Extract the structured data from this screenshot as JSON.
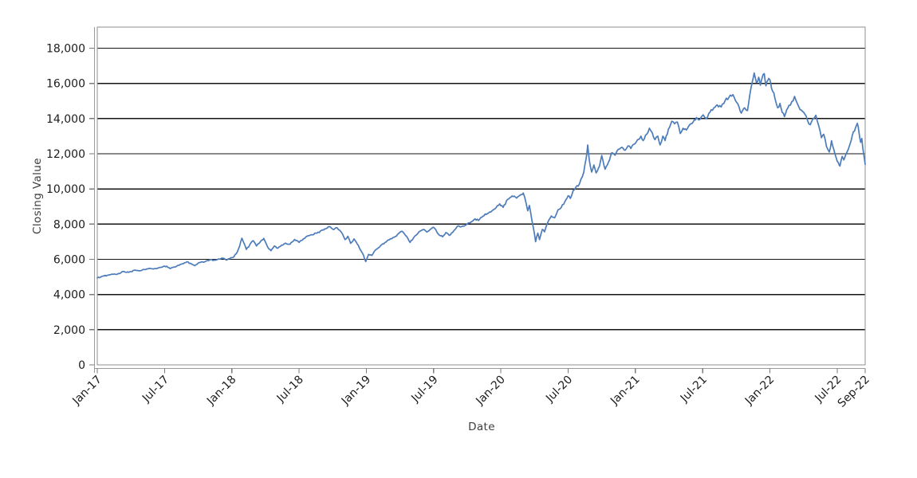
{
  "style": {
    "background": "#ffffff",
    "line_color": "#4d7cba",
    "grid_color": "#141414",
    "border_color": "#8f8f8f",
    "axis_color": "#9a9a9a",
    "tick_color": "#7a7a7a",
    "tick_label_color": "#1c1c1c",
    "axis_title_color": "#3d3d3d"
  },
  "chart_data": {
    "type": "line",
    "title": "",
    "xlabel": "Date",
    "ylabel": "Closing Value",
    "legend": "none",
    "grid": {
      "horizontal": true,
      "vertical": false
    },
    "x_axis": {
      "unit": "months since Jan-2017",
      "domain_months": [
        0,
        68.5
      ],
      "tick_months": [
        0,
        6,
        12,
        18,
        24,
        30,
        36,
        42,
        48,
        54,
        60,
        66,
        68.5
      ],
      "tick_labels": [
        "Jan-17",
        "Jul-17",
        "Jan-18",
        "Jul-18",
        "Jan-19",
        "Jul-19",
        "Jan-20",
        "Jul-20",
        "Jan-21",
        "Jul-21",
        "Jan-22",
        "Jul-22",
        "Sep-22"
      ],
      "label_rotation_deg": -45
    },
    "y_axis": {
      "min": 0,
      "max": 19200,
      "tick_values": [
        0,
        2000,
        4000,
        6000,
        8000,
        10000,
        12000,
        14000,
        16000,
        18000
      ],
      "tick_format": "thousands-comma"
    },
    "series": [
      {
        "name": "Closing Value",
        "color": "#4d7cba",
        "points_month_value": [
          [
            0.0,
            4950
          ],
          [
            0.3,
            4990
          ],
          [
            0.6,
            5060
          ],
          [
            1.0,
            5100
          ],
          [
            1.3,
            5160
          ],
          [
            1.7,
            5140
          ],
          [
            2.0,
            5190
          ],
          [
            2.3,
            5310
          ],
          [
            2.6,
            5260
          ],
          [
            3.0,
            5300
          ],
          [
            3.4,
            5390
          ],
          [
            3.8,
            5350
          ],
          [
            4.2,
            5420
          ],
          [
            4.6,
            5480
          ],
          [
            5.0,
            5450
          ],
          [
            5.4,
            5500
          ],
          [
            5.8,
            5560
          ],
          [
            6.2,
            5610
          ],
          [
            6.5,
            5470
          ],
          [
            6.9,
            5560
          ],
          [
            7.3,
            5660
          ],
          [
            7.7,
            5760
          ],
          [
            8.0,
            5860
          ],
          [
            8.4,
            5740
          ],
          [
            8.7,
            5640
          ],
          [
            9.0,
            5790
          ],
          [
            9.4,
            5850
          ],
          [
            9.7,
            5900
          ],
          [
            10.1,
            5990
          ],
          [
            10.4,
            5950
          ],
          [
            10.8,
            6020
          ],
          [
            11.2,
            6060
          ],
          [
            11.5,
            5960
          ],
          [
            11.8,
            6030
          ],
          [
            12.1,
            6100
          ],
          [
            12.4,
            6320
          ],
          [
            12.7,
            6750
          ],
          [
            12.9,
            7200
          ],
          [
            13.1,
            6900
          ],
          [
            13.3,
            6560
          ],
          [
            13.6,
            6820
          ],
          [
            13.9,
            7060
          ],
          [
            14.2,
            6760
          ],
          [
            14.55,
            7000
          ],
          [
            14.85,
            7190
          ],
          [
            15.2,
            6700
          ],
          [
            15.5,
            6490
          ],
          [
            15.8,
            6760
          ],
          [
            16.1,
            6630
          ],
          [
            16.45,
            6810
          ],
          [
            16.8,
            6920
          ],
          [
            17.2,
            6860
          ],
          [
            17.6,
            7130
          ],
          [
            18.0,
            6960
          ],
          [
            18.4,
            7170
          ],
          [
            18.8,
            7340
          ],
          [
            19.2,
            7390
          ],
          [
            19.6,
            7490
          ],
          [
            20.0,
            7640
          ],
          [
            20.4,
            7740
          ],
          [
            20.75,
            7860
          ],
          [
            21.1,
            7690
          ],
          [
            21.4,
            7790
          ],
          [
            21.75,
            7560
          ],
          [
            22.1,
            7120
          ],
          [
            22.35,
            7310
          ],
          [
            22.6,
            6910
          ],
          [
            22.9,
            7160
          ],
          [
            23.2,
            6860
          ],
          [
            23.5,
            6510
          ],
          [
            23.75,
            6230
          ],
          [
            23.95,
            5870
          ],
          [
            24.2,
            6280
          ],
          [
            24.5,
            6220
          ],
          [
            24.85,
            6550
          ],
          [
            25.25,
            6760
          ],
          [
            25.65,
            6950
          ],
          [
            26.05,
            7110
          ],
          [
            26.5,
            7260
          ],
          [
            26.9,
            7480
          ],
          [
            27.2,
            7590
          ],
          [
            27.6,
            7300
          ],
          [
            27.9,
            6960
          ],
          [
            28.3,
            7300
          ],
          [
            28.7,
            7570
          ],
          [
            29.1,
            7700
          ],
          [
            29.4,
            7550
          ],
          [
            29.7,
            7700
          ],
          [
            30.0,
            7820
          ],
          [
            30.4,
            7450
          ],
          [
            30.8,
            7280
          ],
          [
            31.1,
            7520
          ],
          [
            31.4,
            7360
          ],
          [
            31.8,
            7620
          ],
          [
            32.2,
            7900
          ],
          [
            32.5,
            7860
          ],
          [
            32.9,
            7960
          ],
          [
            33.3,
            8100
          ],
          [
            33.7,
            8300
          ],
          [
            34.0,
            8210
          ],
          [
            34.4,
            8450
          ],
          [
            34.8,
            8600
          ],
          [
            35.2,
            8750
          ],
          [
            35.6,
            8960
          ],
          [
            35.9,
            9150
          ],
          [
            36.2,
            8950
          ],
          [
            36.6,
            9400
          ],
          [
            37.0,
            9600
          ],
          [
            37.4,
            9480
          ],
          [
            37.8,
            9680
          ],
          [
            38.0,
            9770
          ],
          [
            38.25,
            9200
          ],
          [
            38.4,
            8760
          ],
          [
            38.55,
            9060
          ],
          [
            38.75,
            8300
          ],
          [
            38.9,
            7800
          ],
          [
            39.1,
            7000
          ],
          [
            39.3,
            7490
          ],
          [
            39.45,
            7120
          ],
          [
            39.7,
            7700
          ],
          [
            39.9,
            7560
          ],
          [
            40.2,
            8120
          ],
          [
            40.5,
            8460
          ],
          [
            40.8,
            8360
          ],
          [
            41.1,
            8810
          ],
          [
            41.4,
            8960
          ],
          [
            41.7,
            9260
          ],
          [
            42.0,
            9610
          ],
          [
            42.2,
            9460
          ],
          [
            42.45,
            9910
          ],
          [
            42.7,
            10110
          ],
          [
            42.9,
            10160
          ],
          [
            43.15,
            10560
          ],
          [
            43.4,
            10950
          ],
          [
            43.6,
            11700
          ],
          [
            43.75,
            12500
          ],
          [
            43.9,
            11600
          ],
          [
            44.1,
            10960
          ],
          [
            44.3,
            11360
          ],
          [
            44.5,
            10910
          ],
          [
            44.8,
            11300
          ],
          [
            45.0,
            11900
          ],
          [
            45.3,
            11120
          ],
          [
            45.6,
            11520
          ],
          [
            45.9,
            12060
          ],
          [
            46.2,
            11920
          ],
          [
            46.5,
            12260
          ],
          [
            46.8,
            12370
          ],
          [
            47.1,
            12200
          ],
          [
            47.35,
            12450
          ],
          [
            47.6,
            12300
          ],
          [
            47.9,
            12550
          ],
          [
            48.2,
            12800
          ],
          [
            48.5,
            13000
          ],
          [
            48.7,
            12750
          ],
          [
            49.0,
            13100
          ],
          [
            49.25,
            13450
          ],
          [
            49.5,
            13200
          ],
          [
            49.75,
            12800
          ],
          [
            50.0,
            13000
          ],
          [
            50.2,
            12500
          ],
          [
            50.45,
            13000
          ],
          [
            50.65,
            12750
          ],
          [
            50.95,
            13400
          ],
          [
            51.25,
            13850
          ],
          [
            51.5,
            13700
          ],
          [
            51.75,
            13800
          ],
          [
            52.0,
            13150
          ],
          [
            52.25,
            13450
          ],
          [
            52.55,
            13350
          ],
          [
            52.85,
            13650
          ],
          [
            53.15,
            13800
          ],
          [
            53.45,
            14060
          ],
          [
            53.75,
            13950
          ],
          [
            54.05,
            14210
          ],
          [
            54.35,
            13990
          ],
          [
            54.65,
            14360
          ],
          [
            55.0,
            14610
          ],
          [
            55.3,
            14780
          ],
          [
            55.65,
            14660
          ],
          [
            56.0,
            15010
          ],
          [
            56.35,
            15210
          ],
          [
            56.7,
            15360
          ],
          [
            57.05,
            14910
          ],
          [
            57.45,
            14310
          ],
          [
            57.75,
            14610
          ],
          [
            58.0,
            14450
          ],
          [
            58.2,
            15310
          ],
          [
            58.4,
            16000
          ],
          [
            58.6,
            16590
          ],
          [
            58.8,
            16050
          ],
          [
            59.0,
            16350
          ],
          [
            59.15,
            15900
          ],
          [
            59.3,
            16300
          ],
          [
            59.5,
            16550
          ],
          [
            59.65,
            15860
          ],
          [
            59.8,
            16150
          ],
          [
            60.0,
            16210
          ],
          [
            60.15,
            15710
          ],
          [
            60.35,
            15460
          ],
          [
            60.55,
            14910
          ],
          [
            60.7,
            14610
          ],
          [
            60.9,
            14860
          ],
          [
            61.1,
            14350
          ],
          [
            61.3,
            14110
          ],
          [
            61.5,
            14500
          ],
          [
            61.7,
            14750
          ],
          [
            61.95,
            14960
          ],
          [
            62.2,
            15260
          ],
          [
            62.45,
            14850
          ],
          [
            62.7,
            14500
          ],
          [
            62.9,
            14410
          ],
          [
            63.1,
            14270
          ],
          [
            63.35,
            13910
          ],
          [
            63.6,
            13650
          ],
          [
            63.85,
            14010
          ],
          [
            64.1,
            14190
          ],
          [
            64.35,
            13610
          ],
          [
            64.6,
            12910
          ],
          [
            64.8,
            13110
          ],
          [
            65.05,
            12410
          ],
          [
            65.3,
            12100
          ],
          [
            65.5,
            12740
          ],
          [
            65.7,
            12250
          ],
          [
            65.9,
            11800
          ],
          [
            66.1,
            11500
          ],
          [
            66.25,
            11300
          ],
          [
            66.45,
            11850
          ],
          [
            66.6,
            11650
          ],
          [
            66.8,
            12000
          ],
          [
            67.0,
            12260
          ],
          [
            67.25,
            12750
          ],
          [
            67.45,
            13250
          ],
          [
            67.65,
            13500
          ],
          [
            67.8,
            13730
          ],
          [
            67.95,
            13200
          ],
          [
            68.1,
            12650
          ],
          [
            68.2,
            12870
          ],
          [
            68.35,
            12050
          ],
          [
            68.5,
            11400
          ]
        ]
      }
    ]
  }
}
